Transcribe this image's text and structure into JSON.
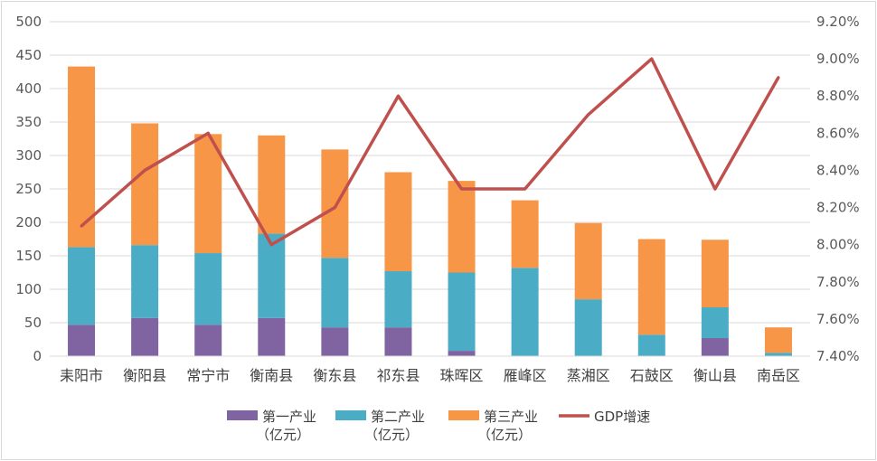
{
  "chart_data": {
    "type": "bar",
    "stacked": true,
    "categories": [
      "耒阳市",
      "衡阳县",
      "常宁市",
      "衡南县",
      "衡东县",
      "祁东县",
      "珠晖区",
      "雁峰区",
      "蒸湘区",
      "石鼓区",
      "衡山县",
      "南岳区"
    ],
    "series": [
      {
        "name": "第一产业（亿元）",
        "name_line1": "第一产业",
        "name_line2": "（亿元）",
        "type": "bar",
        "axis": "left",
        "color": "#8064a2",
        "values": [
          47,
          57,
          47,
          57,
          43,
          43,
          8,
          0,
          0,
          0,
          27,
          0
        ]
      },
      {
        "name": "第二产业（亿元）",
        "name_line1": "第二产业",
        "name_line2": "（亿元）",
        "type": "bar",
        "axis": "left",
        "color": "#4bacc6",
        "values": [
          116,
          109,
          107,
          126,
          104,
          84,
          117,
          132,
          85,
          32,
          46,
          5
        ]
      },
      {
        "name": "第三产业（亿元）",
        "name_line1": "第三产业",
        "name_line2": "（亿元）",
        "type": "bar",
        "axis": "left",
        "color": "#f79646",
        "values": [
          270,
          182,
          178,
          147,
          162,
          148,
          137,
          101,
          114,
          143,
          101,
          38
        ]
      },
      {
        "name": "GDP增速",
        "name_line1": "GDP增速",
        "name_line2": "",
        "type": "line",
        "axis": "right",
        "color": "#c0504d",
        "values": [
          8.1,
          8.4,
          8.6,
          8.0,
          8.2,
          8.8,
          8.3,
          8.3,
          8.7,
          9.0,
          8.3,
          8.9
        ]
      }
    ],
    "y_left": {
      "min": 0,
      "max": 500,
      "step": 50,
      "ticks": [
        "0",
        "50",
        "100",
        "150",
        "200",
        "250",
        "300",
        "350",
        "400",
        "450",
        "500"
      ]
    },
    "y_right": {
      "min": 7.4,
      "max": 9.2,
      "step": 0.2,
      "ticks": [
        "7.40%",
        "7.60%",
        "7.80%",
        "8.00%",
        "8.20%",
        "8.40%",
        "8.60%",
        "8.80%",
        "9.00%",
        "9.20%"
      ]
    },
    "grid": true,
    "legend_position": "bottom",
    "axis_color": "#d9d9d9",
    "grid_color": "#d9d9d9"
  }
}
